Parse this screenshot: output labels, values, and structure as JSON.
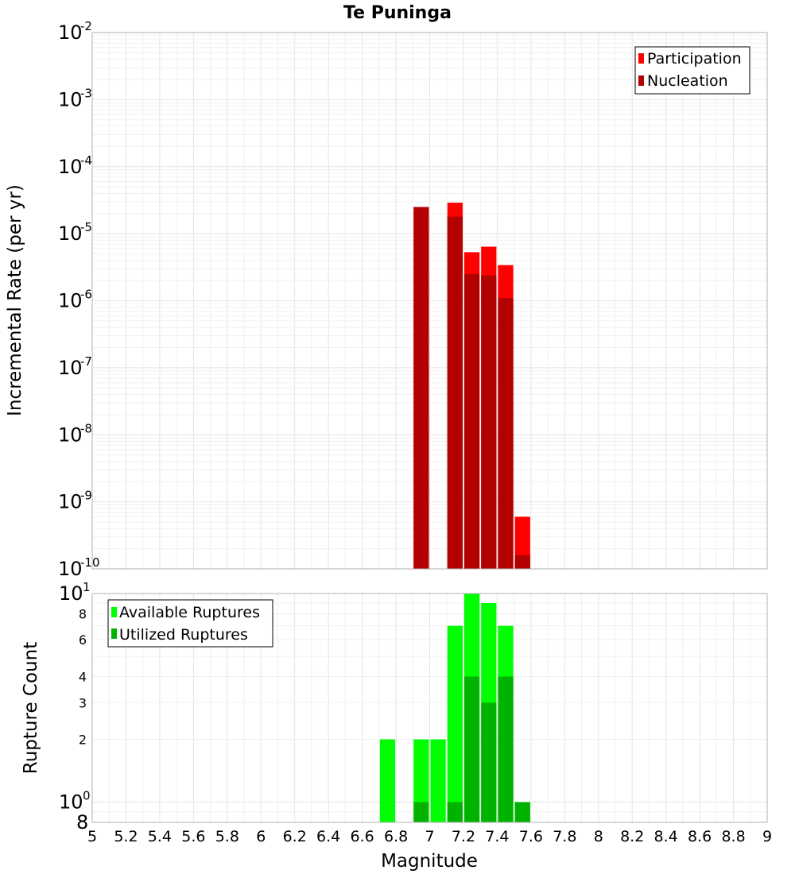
{
  "chart_data": [
    {
      "type": "bar",
      "title": "Te Puninga",
      "xlabel": "Magnitude",
      "ylabel": "Incremental Rate (per yr)",
      "yscale": "log",
      "xlim": [
        5,
        9
      ],
      "ylim": [
        1e-10,
        0.01
      ],
      "bin_width": 0.1,
      "grid": true,
      "legend_position": "top-right",
      "y_ticks": [
        {
          "base": "10",
          "exp": "-2"
        },
        {
          "base": "10",
          "exp": "-3"
        },
        {
          "base": "10",
          "exp": "-4"
        },
        {
          "base": "10",
          "exp": "-5"
        },
        {
          "base": "10",
          "exp": "-6"
        },
        {
          "base": "10",
          "exp": "-7"
        },
        {
          "base": "10",
          "exp": "-8"
        },
        {
          "base": "10",
          "exp": "-9"
        },
        {
          "base": "10",
          "exp": "-10"
        }
      ],
      "series": [
        {
          "name": "Participation",
          "color": "#ff0000",
          "x": [
            6.95,
            7.15,
            7.25,
            7.35,
            7.45,
            7.55
          ],
          "values": [
            2.5e-05,
            2.9e-05,
            5.3e-06,
            6.4e-06,
            3.4e-06,
            6e-10
          ]
        },
        {
          "name": "Nucleation",
          "color": "#b30000",
          "x": [
            6.95,
            7.15,
            7.25,
            7.35,
            7.45,
            7.55
          ],
          "values": [
            2.5e-05,
            1.8e-05,
            2.5e-06,
            2.4e-06,
            1.1e-06,
            1.6e-10
          ]
        }
      ]
    },
    {
      "type": "bar",
      "xlabel": "Magnitude",
      "ylabel": "Rupture Count",
      "yscale": "log",
      "xlim": [
        5,
        9
      ],
      "ylim": [
        0.8,
        10
      ],
      "bin_width": 0.1,
      "grid": true,
      "legend_position": "top-left",
      "x_ticks": [
        "5",
        "5.2",
        "5.4",
        "5.6",
        "5.8",
        "6",
        "6.2",
        "6.4",
        "6.6",
        "6.8",
        "7",
        "7.2",
        "7.4",
        "7.6",
        "7.8",
        "8",
        "8.2",
        "8.4",
        "8.6",
        "8.8",
        "9"
      ],
      "y_ticks_small": [
        "8",
        "6",
        "4",
        "3",
        "2"
      ],
      "y_tick_values": [
        8,
        6,
        4,
        3,
        2
      ],
      "y_ticks_pow": [
        {
          "base": "10",
          "exp": "1"
        },
        {
          "base": "10",
          "exp": "0"
        }
      ],
      "y_bottom_label": "8",
      "series": [
        {
          "name": "Available Ruptures",
          "color": "#00ff00",
          "x": [
            6.75,
            6.95,
            7.05,
            7.15,
            7.25,
            7.35,
            7.45,
            7.55
          ],
          "values": [
            2,
            2,
            2,
            7,
            10,
            9,
            7,
            1
          ]
        },
        {
          "name": "Utilized Ruptures",
          "color": "#00b300",
          "x": [
            6.95,
            7.15,
            7.25,
            7.35,
            7.45,
            7.55
          ],
          "values": [
            1,
            1,
            4,
            3,
            4,
            1
          ]
        }
      ]
    }
  ]
}
